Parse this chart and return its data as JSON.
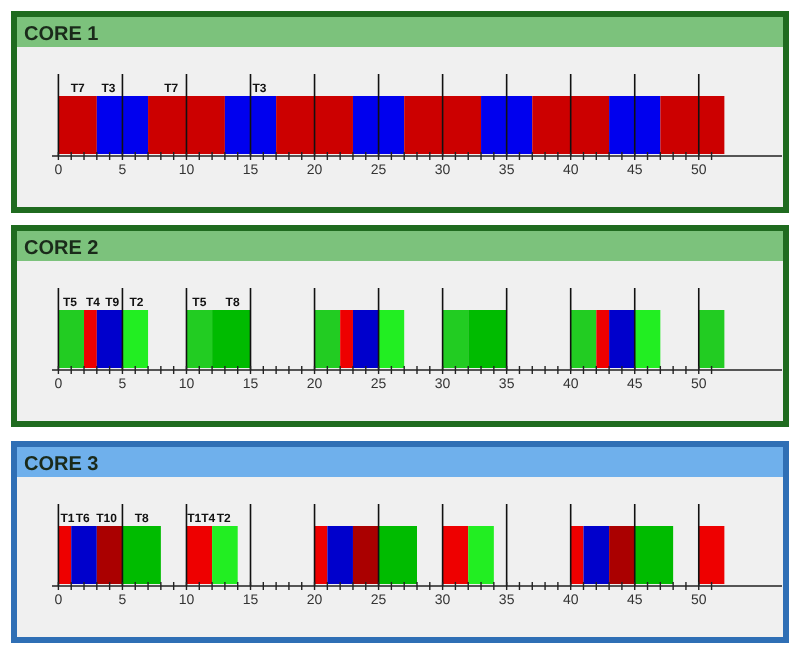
{
  "chart_data": [
    {
      "type": "bar",
      "title": "CORE 1",
      "orientation": "horizontal",
      "categories": [
        null
      ],
      "xlim": [
        -0.5,
        56.5
      ],
      "xticks": [
        0,
        {
          "value": 1,
          "label": null
        },
        {
          "value": 2,
          "label": null
        },
        {
          "value": 3,
          "label": null
        },
        {
          "value": 4,
          "label": null
        },
        5,
        {
          "value": 6,
          "label": null
        },
        {
          "value": 7,
          "label": null
        },
        {
          "value": 8,
          "label": null
        },
        {
          "value": 9,
          "label": null
        },
        10,
        {
          "value": 11,
          "label": null
        },
        {
          "value": 12,
          "label": null
        },
        {
          "value": 13,
          "label": null
        },
        {
          "value": 14,
          "label": null
        },
        15,
        {
          "value": 16,
          "label": null
        },
        {
          "value": 17,
          "label": null
        },
        {
          "value": 18,
          "label": null
        },
        {
          "value": 19,
          "label": null
        },
        20,
        {
          "value": 21,
          "label": null
        },
        {
          "value": 22,
          "label": null
        },
        {
          "value": 23,
          "label": null
        },
        {
          "value": 24,
          "label": null
        },
        25,
        {
          "value": 26,
          "label": null
        },
        {
          "value": 27,
          "label": null
        },
        {
          "value": 28,
          "label": null
        },
        {
          "value": 29,
          "label": null
        },
        30,
        {
          "value": 31,
          "label": null
        },
        {
          "value": 32,
          "label": null
        },
        {
          "value": 33,
          "label": null
        },
        {
          "value": 34,
          "label": null
        },
        35,
        {
          "value": 36,
          "label": null
        },
        {
          "value": 37,
          "label": null
        },
        {
          "value": 38,
          "label": null
        },
        {
          "value": 39,
          "label": null
        },
        40,
        {
          "value": 41,
          "label": null
        },
        {
          "value": 42,
          "label": null
        },
        {
          "value": 43,
          "label": null
        },
        {
          "value": 44,
          "label": null
        },
        45,
        {
          "value": 46,
          "label": null
        },
        {
          "value": 47,
          "label": null
        },
        {
          "value": 48,
          "label": null
        },
        {
          "value": 49,
          "label": null
        },
        50,
        {
          "value": 51,
          "label": null
        }
      ],
      "series": [
        {
          "color": "#cc0000",
          "base": [
            0
          ],
          "values": [
            3
          ]
        },
        {
          "color": "#0000ee",
          "base": [
            3
          ],
          "values": [
            4
          ]
        },
        {
          "color": "#cc0000",
          "base": [
            7
          ],
          "values": [
            6
          ]
        },
        {
          "color": "#0000ee",
          "base": [
            13
          ],
          "values": [
            4
          ]
        },
        {
          "color": "#cc0000",
          "base": [
            17
          ],
          "values": [
            6
          ]
        },
        {
          "color": "#0000ee",
          "base": [
            23
          ],
          "values": [
            4
          ]
        },
        {
          "color": "#cc0000",
          "base": [
            27
          ],
          "values": [
            6
          ]
        },
        {
          "color": "#0000ee",
          "base": [
            33
          ],
          "values": [
            4
          ]
        },
        {
          "color": "#cc0000",
          "base": [
            37
          ],
          "values": [
            6
          ]
        },
        {
          "color": "#0000ee",
          "base": [
            43
          ],
          "values": [
            4
          ]
        },
        {
          "color": "#cc0000",
          "base": [
            47
          ],
          "values": [
            5
          ]
        }
      ],
      "ref_lines": [
        {
          "axis": "x",
          "value": 0
        },
        {
          "axis": "x",
          "value": 5
        },
        {
          "axis": "x",
          "value": 10
        },
        {
          "axis": "x",
          "value": 15
        },
        {
          "axis": "x",
          "value": 20
        },
        {
          "axis": "x",
          "value": 25
        },
        {
          "axis": "x",
          "value": 30
        },
        {
          "axis": "x",
          "value": 35
        },
        {
          "axis": "x",
          "value": 40
        },
        {
          "axis": "x",
          "value": 45
        },
        {
          "axis": "x",
          "value": 50
        }
      ],
      "annotations": [
        {
          "text": "T7",
          "x": 0.8
        },
        {
          "text": "T3",
          "x": 3.2
        },
        {
          "text": "T7",
          "x": 8.1
        },
        {
          "text": "T3",
          "x": 15
        }
      ]
    },
    {
      "type": "bar",
      "title": "CORE 2",
      "orientation": "horizontal",
      "categories": [
        null
      ],
      "xlim": [
        -0.5,
        56.5
      ],
      "xticks": [
        0,
        {
          "value": 1,
          "label": null
        },
        {
          "value": 2,
          "label": null
        },
        {
          "value": 3,
          "label": null
        },
        {
          "value": 4,
          "label": null
        },
        5,
        {
          "value": 6,
          "label": null
        },
        {
          "value": 7,
          "label": null
        },
        {
          "value": 8,
          "label": null
        },
        {
          "value": 9,
          "label": null
        },
        10,
        {
          "value": 11,
          "label": null
        },
        {
          "value": 12,
          "label": null
        },
        {
          "value": 13,
          "label": null
        },
        {
          "value": 14,
          "label": null
        },
        15,
        {
          "value": 16,
          "label": null
        },
        {
          "value": 17,
          "label": null
        },
        {
          "value": 18,
          "label": null
        },
        {
          "value": 19,
          "label": null
        },
        20,
        {
          "value": 21,
          "label": null
        },
        {
          "value": 22,
          "label": null
        },
        {
          "value": 23,
          "label": null
        },
        {
          "value": 24,
          "label": null
        },
        25,
        {
          "value": 26,
          "label": null
        },
        {
          "value": 27,
          "label": null
        },
        {
          "value": 28,
          "label": null
        },
        {
          "value": 29,
          "label": null
        },
        30,
        {
          "value": 31,
          "label": null
        },
        {
          "value": 32,
          "label": null
        },
        {
          "value": 33,
          "label": null
        },
        {
          "value": 34,
          "label": null
        },
        35,
        {
          "value": 36,
          "label": null
        },
        {
          "value": 37,
          "label": null
        },
        {
          "value": 38,
          "label": null
        },
        {
          "value": 39,
          "label": null
        },
        40,
        {
          "value": 41,
          "label": null
        },
        {
          "value": 42,
          "label": null
        },
        {
          "value": 43,
          "label": null
        },
        {
          "value": 44,
          "label": null
        },
        45,
        {
          "value": 46,
          "label": null
        },
        {
          "value": 47,
          "label": null
        },
        {
          "value": 48,
          "label": null
        },
        {
          "value": 49,
          "label": null
        },
        50,
        {
          "value": 51,
          "label": null
        }
      ],
      "series": [
        {
          "color": "#22cc22",
          "base": [
            0
          ],
          "values": [
            2
          ]
        },
        {
          "color": "#ee0000",
          "base": [
            2
          ],
          "values": [
            1
          ]
        },
        {
          "color": "#0000cc",
          "base": [
            3
          ],
          "values": [
            2
          ]
        },
        {
          "color": "#22ee22",
          "base": [
            5
          ],
          "values": [
            2
          ]
        },
        {
          "color": "#22cc22",
          "base": [
            10
          ],
          "values": [
            2
          ]
        },
        {
          "color": "#00bb00",
          "base": [
            12
          ],
          "values": [
            3
          ]
        },
        {
          "color": "#22cc22",
          "base": [
            20
          ],
          "values": [
            2
          ]
        },
        {
          "color": "#ee0000",
          "base": [
            22
          ],
          "values": [
            1
          ]
        },
        {
          "color": "#0000cc",
          "base": [
            23
          ],
          "values": [
            2
          ]
        },
        {
          "color": "#22ee22",
          "base": [
            25
          ],
          "values": [
            2
          ]
        },
        {
          "color": "#22cc22",
          "base": [
            30
          ],
          "values": [
            2
          ]
        },
        {
          "color": "#00bb00",
          "base": [
            32
          ],
          "values": [
            3
          ]
        },
        {
          "color": "#22cc22",
          "base": [
            40
          ],
          "values": [
            2
          ]
        },
        {
          "color": "#ee0000",
          "base": [
            42
          ],
          "values": [
            1
          ]
        },
        {
          "color": "#0000cc",
          "base": [
            43
          ],
          "values": [
            2
          ]
        },
        {
          "color": "#22ee22",
          "base": [
            45
          ],
          "values": [
            2
          ]
        },
        {
          "color": "#22cc22",
          "base": [
            50
          ],
          "values": [
            2
          ]
        }
      ],
      "ref_lines": [
        {
          "axis": "x",
          "value": 0
        },
        {
          "axis": "x",
          "value": 5
        },
        {
          "axis": "x",
          "value": 10
        },
        {
          "axis": "x",
          "value": 15
        },
        {
          "axis": "x",
          "value": 20
        },
        {
          "axis": "x",
          "value": 25
        },
        {
          "axis": "x",
          "value": 30
        },
        {
          "axis": "x",
          "value": 35
        },
        {
          "axis": "x",
          "value": 40
        },
        {
          "axis": "x",
          "value": 45
        },
        {
          "axis": "x",
          "value": 50
        }
      ],
      "annotations": [
        {
          "text": "T5",
          "x": 0.2
        },
        {
          "text": "T4",
          "x": 2
        },
        {
          "text": "T9",
          "x": 3.5
        },
        {
          "text": "T2",
          "x": 5.4
        },
        {
          "text": "T5",
          "x": 10.3
        },
        {
          "text": "T8",
          "x": 12.9
        }
      ]
    },
    {
      "type": "bar",
      "title": "CORE 3",
      "orientation": "horizontal",
      "categories": [
        null
      ],
      "xlim": [
        -0.5,
        56.5
      ],
      "xticks": [
        0,
        {
          "value": 1,
          "label": null
        },
        {
          "value": 2,
          "label": null
        },
        {
          "value": 3,
          "label": null
        },
        {
          "value": 4,
          "label": null
        },
        5,
        {
          "value": 6,
          "label": null
        },
        {
          "value": 7,
          "label": null
        },
        {
          "value": 8,
          "label": null
        },
        {
          "value": 9,
          "label": null
        },
        10,
        {
          "value": 11,
          "label": null
        },
        {
          "value": 12,
          "label": null
        },
        {
          "value": 13,
          "label": null
        },
        {
          "value": 14,
          "label": null
        },
        15,
        {
          "value": 16,
          "label": null
        },
        {
          "value": 17,
          "label": null
        },
        {
          "value": 18,
          "label": null
        },
        {
          "value": 19,
          "label": null
        },
        20,
        {
          "value": 21,
          "label": null
        },
        {
          "value": 22,
          "label": null
        },
        {
          "value": 23,
          "label": null
        },
        {
          "value": 24,
          "label": null
        },
        25,
        {
          "value": 26,
          "label": null
        },
        {
          "value": 27,
          "label": null
        },
        {
          "value": 28,
          "label": null
        },
        {
          "value": 29,
          "label": null
        },
        30,
        {
          "value": 31,
          "label": null
        },
        {
          "value": 32,
          "label": null
        },
        {
          "value": 33,
          "label": null
        },
        {
          "value": 34,
          "label": null
        },
        35,
        {
          "value": 36,
          "label": null
        },
        {
          "value": 37,
          "label": null
        },
        {
          "value": 38,
          "label": null
        },
        {
          "value": 39,
          "label": null
        },
        40,
        {
          "value": 41,
          "label": null
        },
        {
          "value": 42,
          "label": null
        },
        {
          "value": 43,
          "label": null
        },
        {
          "value": 44,
          "label": null
        },
        45,
        {
          "value": 46,
          "label": null
        },
        {
          "value": 47,
          "label": null
        },
        {
          "value": 48,
          "label": null
        },
        {
          "value": 49,
          "label": null
        },
        50,
        {
          "value": 51,
          "label": null
        }
      ],
      "series": [
        {
          "color": "#ee0000",
          "base": [
            0
          ],
          "values": [
            1
          ]
        },
        {
          "color": "#0000cc",
          "base": [
            1
          ],
          "values": [
            2
          ]
        },
        {
          "color": "#aa0000",
          "base": [
            3
          ],
          "values": [
            2
          ]
        },
        {
          "color": "#00bb00",
          "base": [
            5
          ],
          "values": [
            3
          ]
        },
        {
          "color": "#ee0000",
          "base": [
            10
          ],
          "values": [
            2
          ]
        },
        {
          "color": "#22ee22",
          "base": [
            12
          ],
          "values": [
            2
          ]
        },
        {
          "color": "#ee0000",
          "base": [
            20
          ],
          "values": [
            1
          ]
        },
        {
          "color": "#0000cc",
          "base": [
            21
          ],
          "values": [
            2
          ]
        },
        {
          "color": "#aa0000",
          "base": [
            23
          ],
          "values": [
            2
          ]
        },
        {
          "color": "#00bb00",
          "base": [
            25
          ],
          "values": [
            3
          ]
        },
        {
          "color": "#ee0000",
          "base": [
            30
          ],
          "values": [
            2
          ]
        },
        {
          "color": "#22ee22",
          "base": [
            32
          ],
          "values": [
            2
          ]
        },
        {
          "color": "#ee0000",
          "base": [
            40
          ],
          "values": [
            1
          ]
        },
        {
          "color": "#0000cc",
          "base": [
            41
          ],
          "values": [
            2
          ]
        },
        {
          "color": "#aa0000",
          "base": [
            43
          ],
          "values": [
            2
          ]
        },
        {
          "color": "#00bb00",
          "base": [
            45
          ],
          "values": [
            3
          ]
        },
        {
          "color": "#ee0000",
          "base": [
            50
          ],
          "values": [
            2
          ]
        }
      ],
      "ref_lines": [
        {
          "axis": "x",
          "value": 0
        },
        {
          "axis": "x",
          "value": 5
        },
        {
          "axis": "x",
          "value": 10
        },
        {
          "axis": "x",
          "value": 15
        },
        {
          "axis": "x",
          "value": 20
        },
        {
          "axis": "x",
          "value": 25
        },
        {
          "axis": "x",
          "value": 30
        },
        {
          "axis": "x",
          "value": 35
        },
        {
          "axis": "x",
          "value": 40
        },
        {
          "axis": "x",
          "value": 45
        },
        {
          "axis": "x",
          "value": 50
        }
      ],
      "annotations": [
        {
          "text": "T1",
          "x": 0
        },
        {
          "text": "T6",
          "x": 1.2
        },
        {
          "text": "T10",
          "x": 2.8
        },
        {
          "text": "T8",
          "x": 5.8
        },
        {
          "text": "T1T4",
          "x": 9.9
        },
        {
          "text": "T2",
          "x": 12.2
        }
      ]
    }
  ]
}
